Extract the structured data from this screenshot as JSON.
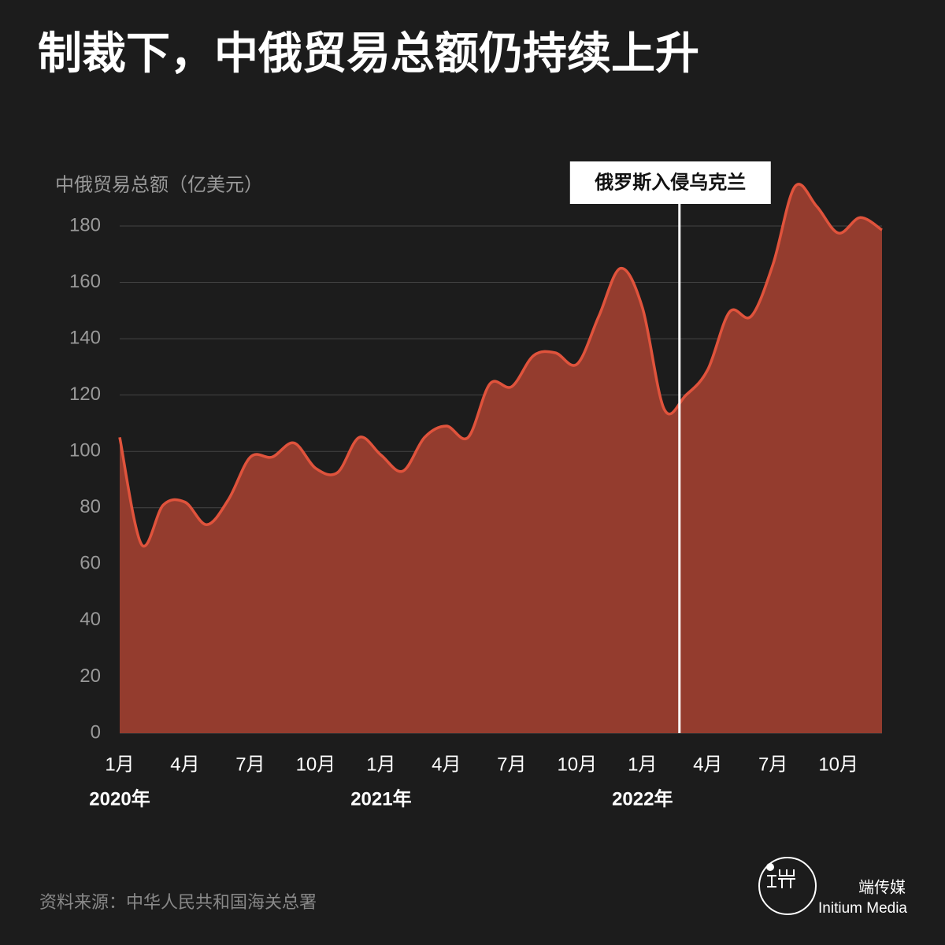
{
  "chart_data": {
    "type": "area",
    "title": "制裁下，中俄贸易总额仍持续上升",
    "y_axis_label": "中俄贸易总额（亿美元）",
    "categories": [
      "1月",
      null,
      null,
      "4月",
      null,
      null,
      "7月",
      null,
      null,
      "10月",
      null,
      null,
      "1月",
      null,
      null,
      "4月",
      null,
      null,
      "7月",
      null,
      null,
      "10月",
      null,
      null,
      "1月",
      null,
      null,
      "4月",
      null,
      null,
      "7月",
      null,
      null,
      "10月",
      null,
      null
    ],
    "year_labels": [
      "2020年",
      "2021年",
      "2022年"
    ],
    "series": [
      {
        "name": "中俄贸易总额",
        "color": "#e0533c",
        "fill": "#943c2e",
        "values": [
          105,
          67,
          81,
          82,
          74,
          83,
          98,
          98,
          103,
          94,
          92.5,
          105,
          98.7,
          93,
          105,
          109,
          105,
          124,
          123,
          134,
          135,
          131,
          148,
          165,
          151,
          115,
          120,
          129,
          149.5,
          148,
          166.5,
          194,
          187,
          177.5,
          183,
          178.6
        ]
      }
    ],
    "ylim": [
      0,
      180
    ],
    "yticks": [
      0,
      20,
      40,
      60,
      80,
      100,
      120,
      140,
      160,
      180
    ],
    "grid": true,
    "annotations": [
      {
        "text": "俄罗斯入侵乌克兰",
        "x": 25.7
      }
    ],
    "source": "资料来源：中华人民共和国海关总署",
    "brand": {
      "name": "端传媒",
      "name_en": "Initium Media"
    }
  }
}
